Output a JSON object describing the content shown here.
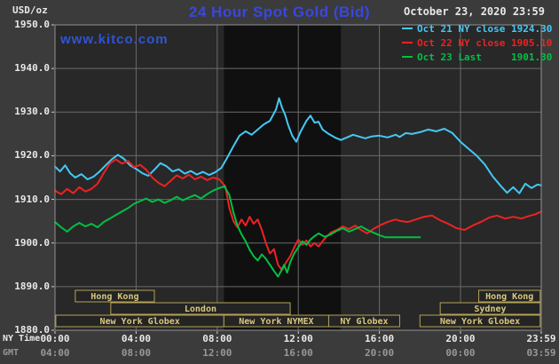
{
  "header": {
    "title": "24 Hour Spot Gold (Bid)",
    "site": "www.kitco.com",
    "datetime": "October 23, 2020 23:59",
    "unit": "USD/oz"
  },
  "axis_corner": {
    "ny": "NY Time",
    "gmt": "GMT"
  },
  "legend": [
    {
      "label": "Oct 21 NY close 1924.30",
      "color": "#45c8f5"
    },
    {
      "label": "Oct 22 NY close 1905.10",
      "color": "#ee2222"
    },
    {
      "label": "Oct 23 Last     1901.30",
      "color": "#00c044"
    }
  ],
  "colors": {
    "page_bg": "#3b3b3b",
    "plot_bg": "#282828",
    "band_bg": "#101010",
    "grid": "#6a6a6a",
    "frame": "#909090",
    "tick": "#cccccc",
    "title_blue": "#3847e0",
    "kitco_blue": "#2f55d4",
    "text_light": "#e8e8e8",
    "text_dim": "#989898",
    "session_border": "#b3a257",
    "session_text": "#d8c87f",
    "session_fill": "#242424"
  },
  "chart_data": {
    "type": "line",
    "title": "24 Hour Spot Gold (Bid)",
    "ylabel": "USD/oz",
    "ylim": [
      1880,
      1950
    ],
    "y_tick_values": [
      1880,
      1890,
      1900,
      1910,
      1920,
      1930,
      1940,
      1950
    ],
    "y_tick_labels": [
      "1880.0",
      "1890.0",
      "1900.0",
      "1910.0",
      "1920.0",
      "1930.0",
      "1940.0",
      "1950.0"
    ],
    "xlim_hours": [
      0,
      23.983
    ],
    "x_tick_hours": [
      0,
      4,
      8,
      12,
      16,
      20,
      23.983
    ],
    "x_tick_labels_ny": [
      "00:00",
      "04:00",
      "08:00",
      "12:00",
      "16:00",
      "20:00",
      "23:59"
    ],
    "x_tick_labels_gmt": [
      "04:00",
      "08:00",
      "12:00",
      "16:00",
      "20:00",
      "00:00",
      "03:59"
    ],
    "grid": true,
    "legend_position": "top-right",
    "highlight_band_hours": [
      8.33,
      14.1
    ],
    "series": [
      {
        "name": "Oct 21",
        "color": "#45c8f5",
        "points": [
          [
            0,
            1917.5
          ],
          [
            0.25,
            1916.4
          ],
          [
            0.5,
            1917.8
          ],
          [
            0.75,
            1916
          ],
          [
            1,
            1915
          ],
          [
            1.3,
            1915.8
          ],
          [
            1.6,
            1914.6
          ],
          [
            1.9,
            1915.2
          ],
          [
            2.2,
            1916.4
          ],
          [
            2.5,
            1917.8
          ],
          [
            2.8,
            1919.2
          ],
          [
            3.1,
            1920.2
          ],
          [
            3.4,
            1919.3
          ],
          [
            3.7,
            1917.8
          ],
          [
            4,
            1917
          ],
          [
            4.3,
            1916
          ],
          [
            4.6,
            1915.4
          ],
          [
            4.9,
            1916.8
          ],
          [
            5.2,
            1918.3
          ],
          [
            5.5,
            1917.6
          ],
          [
            5.8,
            1916.4
          ],
          [
            6.1,
            1916.9
          ],
          [
            6.4,
            1915.9
          ],
          [
            6.7,
            1916.5
          ],
          [
            7,
            1915.7
          ],
          [
            7.3,
            1916.3
          ],
          [
            7.6,
            1915.6
          ],
          [
            7.9,
            1916.2
          ],
          [
            8.2,
            1917.2
          ],
          [
            8.5,
            1919.6
          ],
          [
            8.8,
            1922.2
          ],
          [
            9.1,
            1924.6
          ],
          [
            9.4,
            1925.6
          ],
          [
            9.7,
            1924.8
          ],
          [
            10,
            1926
          ],
          [
            10.3,
            1927.2
          ],
          [
            10.6,
            1928
          ],
          [
            10.9,
            1930.6
          ],
          [
            11.05,
            1933.2
          ],
          [
            11.2,
            1931
          ],
          [
            11.35,
            1929.4
          ],
          [
            11.5,
            1927
          ],
          [
            11.7,
            1924.6
          ],
          [
            11.9,
            1923.2
          ],
          [
            12.1,
            1925.4
          ],
          [
            12.4,
            1928
          ],
          [
            12.6,
            1929.2
          ],
          [
            12.8,
            1927.6
          ],
          [
            13,
            1927.8
          ],
          [
            13.2,
            1926
          ],
          [
            13.5,
            1925
          ],
          [
            13.8,
            1924.2
          ],
          [
            14.1,
            1923.6
          ],
          [
            14.4,
            1924.2
          ],
          [
            14.7,
            1924.8
          ],
          [
            15,
            1924.4
          ],
          [
            15.3,
            1924
          ],
          [
            15.6,
            1924.4
          ],
          [
            16,
            1924.6
          ],
          [
            16.4,
            1924.2
          ],
          [
            16.8,
            1924.8
          ],
          [
            17,
            1924.3
          ],
          [
            17.3,
            1925.2
          ],
          [
            17.6,
            1925
          ],
          [
            18,
            1925.4
          ],
          [
            18.4,
            1926
          ],
          [
            18.8,
            1925.6
          ],
          [
            19.2,
            1926.2
          ],
          [
            19.6,
            1925.2
          ],
          [
            20,
            1923.2
          ],
          [
            20.4,
            1921.6
          ],
          [
            20.8,
            1920
          ],
          [
            21.2,
            1918
          ],
          [
            21.6,
            1915.2
          ],
          [
            22,
            1913
          ],
          [
            22.3,
            1911.5
          ],
          [
            22.6,
            1912.8
          ],
          [
            22.9,
            1911.4
          ],
          [
            23.2,
            1913.6
          ],
          [
            23.5,
            1912.6
          ],
          [
            23.8,
            1913.4
          ],
          [
            23.98,
            1913.2
          ]
        ]
      },
      {
        "name": "Oct 22",
        "color": "#ee2222",
        "points": [
          [
            0,
            1912
          ],
          [
            0.3,
            1911.2
          ],
          [
            0.6,
            1912.4
          ],
          [
            0.9,
            1911.4
          ],
          [
            1.2,
            1912.8
          ],
          [
            1.5,
            1911.8
          ],
          [
            1.8,
            1912.4
          ],
          [
            2.1,
            1913.6
          ],
          [
            2.4,
            1916
          ],
          [
            2.7,
            1918.2
          ],
          [
            3,
            1919.2
          ],
          [
            3.3,
            1918.2
          ],
          [
            3.6,
            1918.8
          ],
          [
            3.9,
            1917.4
          ],
          [
            4.2,
            1917.9
          ],
          [
            4.5,
            1916.8
          ],
          [
            4.8,
            1915
          ],
          [
            5.1,
            1913.8
          ],
          [
            5.4,
            1913
          ],
          [
            5.7,
            1914.2
          ],
          [
            6,
            1915.5
          ],
          [
            6.3,
            1914.8
          ],
          [
            6.6,
            1915.7
          ],
          [
            6.9,
            1914.6
          ],
          [
            7.2,
            1915.2
          ],
          [
            7.5,
            1914.4
          ],
          [
            7.8,
            1915
          ],
          [
            8.1,
            1914.6
          ],
          [
            8.4,
            1913
          ],
          [
            8.6,
            1908
          ],
          [
            8.8,
            1905
          ],
          [
            9,
            1903.6
          ],
          [
            9.2,
            1905.4
          ],
          [
            9.4,
            1904
          ],
          [
            9.6,
            1906
          ],
          [
            9.8,
            1904.4
          ],
          [
            10,
            1905.4
          ],
          [
            10.2,
            1903
          ],
          [
            10.4,
            1900
          ],
          [
            10.6,
            1897.6
          ],
          [
            10.8,
            1898.6
          ],
          [
            11,
            1895
          ],
          [
            11.2,
            1893.8
          ],
          [
            11.4,
            1895.6
          ],
          [
            11.6,
            1897
          ],
          [
            11.8,
            1899
          ],
          [
            12,
            1900.8
          ],
          [
            12.2,
            1899.6
          ],
          [
            12.4,
            1900.6
          ],
          [
            12.6,
            1899.2
          ],
          [
            12.8,
            1900
          ],
          [
            13,
            1899.2
          ],
          [
            13.3,
            1901
          ],
          [
            13.6,
            1902.4
          ],
          [
            13.9,
            1903
          ],
          [
            14.2,
            1903.8
          ],
          [
            14.5,
            1903.2
          ],
          [
            14.8,
            1904
          ],
          [
            15.1,
            1903
          ],
          [
            15.4,
            1902.2
          ],
          [
            15.7,
            1903.2
          ],
          [
            16,
            1904
          ],
          [
            16.4,
            1904.8
          ],
          [
            16.8,
            1905.4
          ],
          [
            17,
            1905.1
          ],
          [
            17.4,
            1904.8
          ],
          [
            17.8,
            1905.4
          ],
          [
            18.2,
            1906
          ],
          [
            18.6,
            1906.3
          ],
          [
            19,
            1905.2
          ],
          [
            19.4,
            1904.4
          ],
          [
            19.8,
            1903.4
          ],
          [
            20.2,
            1903
          ],
          [
            20.6,
            1904
          ],
          [
            21,
            1904.8
          ],
          [
            21.4,
            1905.8
          ],
          [
            21.8,
            1906.3
          ],
          [
            22.2,
            1905.6
          ],
          [
            22.6,
            1906
          ],
          [
            23,
            1905.6
          ],
          [
            23.4,
            1906.2
          ],
          [
            23.7,
            1906.6
          ],
          [
            23.98,
            1907.2
          ]
        ]
      },
      {
        "name": "Oct 23",
        "color": "#00c044",
        "points": [
          [
            0,
            1904.8
          ],
          [
            0.3,
            1903.6
          ],
          [
            0.6,
            1902.6
          ],
          [
            0.9,
            1903.8
          ],
          [
            1.2,
            1904.6
          ],
          [
            1.5,
            1903.8
          ],
          [
            1.8,
            1904.4
          ],
          [
            2.1,
            1903.6
          ],
          [
            2.4,
            1904.8
          ],
          [
            2.7,
            1905.6
          ],
          [
            3,
            1906.4
          ],
          [
            3.3,
            1907.2
          ],
          [
            3.6,
            1908
          ],
          [
            3.9,
            1909
          ],
          [
            4.2,
            1909.6
          ],
          [
            4.5,
            1910.2
          ],
          [
            4.8,
            1909.4
          ],
          [
            5.1,
            1910
          ],
          [
            5.4,
            1909.2
          ],
          [
            5.7,
            1909.8
          ],
          [
            6,
            1910.6
          ],
          [
            6.3,
            1909.8
          ],
          [
            6.6,
            1910.4
          ],
          [
            6.9,
            1911
          ],
          [
            7.2,
            1910.2
          ],
          [
            7.5,
            1911.2
          ],
          [
            7.8,
            1912
          ],
          [
            8.1,
            1912.6
          ],
          [
            8.35,
            1913
          ],
          [
            8.6,
            1911
          ],
          [
            8.8,
            1907
          ],
          [
            9,
            1904
          ],
          [
            9.2,
            1902
          ],
          [
            9.4,
            1900.4
          ],
          [
            9.6,
            1898.4
          ],
          [
            9.8,
            1897
          ],
          [
            10,
            1896
          ],
          [
            10.2,
            1897.4
          ],
          [
            10.4,
            1896.4
          ],
          [
            10.6,
            1895
          ],
          [
            10.8,
            1893.6
          ],
          [
            11,
            1892.3
          ],
          [
            11.15,
            1893.6
          ],
          [
            11.3,
            1895
          ],
          [
            11.45,
            1893.2
          ],
          [
            11.6,
            1895.6
          ],
          [
            11.8,
            1897.6
          ],
          [
            12,
            1899
          ],
          [
            12.2,
            1900.4
          ],
          [
            12.4,
            1899.6
          ],
          [
            12.6,
            1900.8
          ],
          [
            12.8,
            1901.6
          ],
          [
            13,
            1902.2
          ],
          [
            13.3,
            1901.4
          ],
          [
            13.6,
            1902
          ],
          [
            13.9,
            1902.8
          ],
          [
            14.2,
            1903.4
          ],
          [
            14.5,
            1902.6
          ],
          [
            14.8,
            1903.2
          ],
          [
            15.1,
            1903.8
          ],
          [
            15.4,
            1903
          ],
          [
            15.7,
            1902.4
          ],
          [
            16,
            1901.8
          ],
          [
            16.3,
            1901.3
          ],
          [
            17,
            1901.3
          ],
          [
            18,
            1901.3
          ]
        ]
      }
    ],
    "sessions": [
      {
        "row": 0,
        "label": "Hong Kong",
        "start_hour": 1.0,
        "end_hour": 4.9
      },
      {
        "row": 0,
        "label": "Hong Kong",
        "start_hour": 20.9,
        "end_hour": 23.93
      },
      {
        "row": 1,
        "label": "London",
        "start_hour": 2.75,
        "end_hour": 11.6
      },
      {
        "row": 1,
        "label": "Sydney",
        "start_hour": 19.0,
        "end_hour": 23.93
      },
      {
        "row": 2,
        "label": "New York Globex",
        "start_hour": 0.04,
        "end_hour": 8.33
      },
      {
        "row": 2,
        "label": "New York NYMEX",
        "start_hour": 8.33,
        "end_hour": 13.5
      },
      {
        "row": 2,
        "label": "NY Globex",
        "start_hour": 13.5,
        "end_hour": 17.0
      },
      {
        "row": 2,
        "label": "New York Globex",
        "start_hour": 18.0,
        "end_hour": 23.93
      }
    ]
  }
}
